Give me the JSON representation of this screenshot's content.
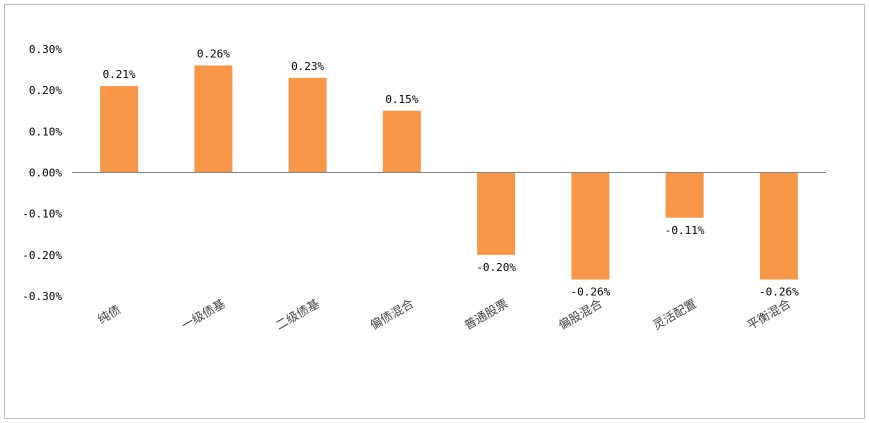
{
  "chart_data": {
    "type": "bar",
    "title": "",
    "xlabel": "",
    "ylabel": "",
    "categories": [
      "纯债",
      "一级债基",
      "二级债基",
      "偏债混合",
      "普通股票",
      "偏股混合",
      "灵活配置",
      "平衡混合"
    ],
    "values": [
      0.21,
      0.26,
      0.23,
      0.15,
      -0.2,
      -0.26,
      -0.11,
      -0.26
    ],
    "data_labels": [
      "0.21%",
      "0.26%",
      "0.23%",
      "0.15%",
      "-0.20%",
      "-0.26%",
      "-0.11%",
      "-0.26%"
    ],
    "ylim": [
      -0.3,
      0.3
    ],
    "yticks": [
      0.3,
      0.2,
      0.1,
      0.0,
      -0.1,
      -0.2,
      -0.3
    ],
    "ytick_labels": [
      "0.30%",
      "0.20%",
      "0.10%",
      "0.00%",
      "-0.10%",
      "-0.20%",
      "-0.30%"
    ],
    "grid": false,
    "legend": "none",
    "bar_color": "#f79646",
    "axis_color": "#868686",
    "frame_color": "#bfbfbf"
  }
}
